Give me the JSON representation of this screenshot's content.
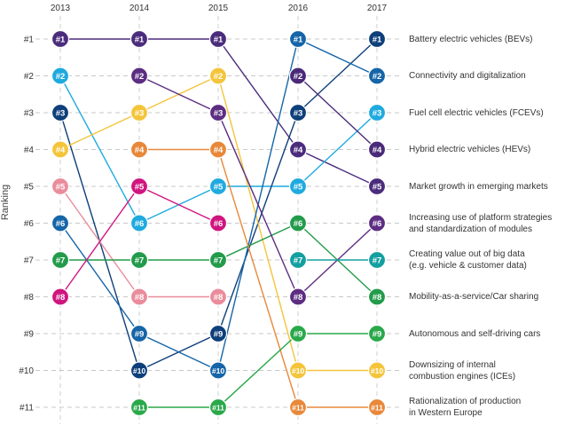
{
  "chart_data": {
    "type": "line",
    "title": "",
    "xlabel": "",
    "ylabel": "Ranking",
    "x": [
      "2013",
      "2014",
      "2015",
      "2016",
      "2017"
    ],
    "y_ticks": [
      "#1",
      "#2",
      "#3",
      "#4",
      "#5",
      "#6",
      "#7",
      "#8",
      "#9",
      "#10",
      "#11"
    ],
    "ylim": [
      1,
      11
    ],
    "y_inverted": true,
    "grid": true,
    "series": [
      {
        "name": "Battery electric vehicles (BEVs)",
        "color": "#4b2c7c",
        "values": [
          1,
          1,
          1,
          4,
          5
        ]
      },
      {
        "name": "Connectivity and digitalization",
        "color": "#1faadf",
        "values": [
          2,
          6,
          5,
          5,
          3
        ]
      },
      {
        "name": "Fuel cell electric vehicles (FCEVs)",
        "color": "#0d3f7a",
        "values": [
          3,
          10,
          9,
          3,
          1
        ]
      },
      {
        "name": "Hybrid electric vehicles (HEVs)",
        "color": "#f4c43a",
        "values": [
          4,
          3,
          2,
          10,
          10
        ]
      },
      {
        "name": "Market growth in emerging markets",
        "color": "#ea8c9c",
        "values": [
          5,
          8,
          8,
          null,
          null
        ]
      },
      {
        "name": "Increasing use of platform strategies and standardization of modules",
        "color": "#1565a8",
        "values": [
          6,
          9,
          10,
          1,
          2
        ]
      },
      {
        "name": "Creating value out of big data (e.g. vehicle & customer data)",
        "color": "#229b4a",
        "values": [
          7,
          7,
          7,
          6,
          8
        ]
      },
      {
        "name": "Mobility-as-a-service/Car sharing",
        "color": "#d0157f",
        "values": [
          8,
          5,
          6,
          null,
          null
        ]
      },
      {
        "name": "Autonomous and self-driving cars",
        "color": "#5c2d82",
        "values": [
          null,
          2,
          3,
          8,
          6
        ]
      },
      {
        "name": "Downsizing of internal combustion engines (ICEs)",
        "color": "#e8883a",
        "values": [
          null,
          4,
          4,
          11,
          11
        ]
      },
      {
        "name": "Rationalization of production in Western Europe",
        "color": "#2aa84a",
        "values": [
          null,
          11,
          11,
          9,
          9
        ]
      },
      {
        "name": "",
        "color": "#4a2a78",
        "values": [
          null,
          null,
          null,
          2,
          4
        ]
      },
      {
        "name": "",
        "color": "#139fa0",
        "values": [
          null,
          null,
          null,
          7,
          7
        ]
      }
    ],
    "legend_placement": "right",
    "legend_labels": [
      "Battery electric vehicles (BEVs)",
      "Connectivity and digitalization",
      "Fuel cell electric vehicles (FCEVs)",
      "Hybrid electric vehicles (HEVs)",
      "Market growth in emerging markets",
      "Increasing use of platform strategies\nand standardization of modules",
      "Creating value out of big data\n(e.g. vehicle & customer data)",
      "Mobility-as-a-service/Car sharing",
      "Autonomous and self-driving cars",
      "Downsizing of internal\ncombustion engines (ICEs)",
      "Rationalization of production\nin Western Europe"
    ]
  }
}
